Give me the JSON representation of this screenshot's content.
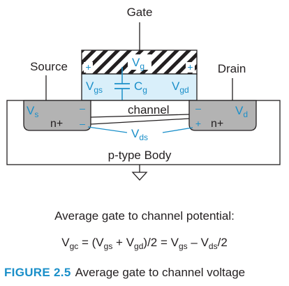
{
  "labels": {
    "gate": "Gate",
    "source": "Source",
    "drain": "Drain",
    "channel": "channel",
    "body": "p-type Body",
    "n_plus_left": "n+",
    "n_plus_right": "n+"
  },
  "voltages": {
    "vg": {
      "main": "V",
      "sub": "g"
    },
    "vgs": {
      "main": "V",
      "sub": "gs"
    },
    "cg": {
      "main": "C",
      "sub": "g"
    },
    "vgd": {
      "main": "V",
      "sub": "gd"
    },
    "vs": {
      "main": "V",
      "sub": "s"
    },
    "vd": {
      "main": "V",
      "sub": "d"
    },
    "vds": {
      "main": "V",
      "sub": "ds"
    }
  },
  "signs": {
    "plus": "+",
    "minus": "–"
  },
  "formula": {
    "heading": "Average gate to channel potential:",
    "text": "V_gc = (V_gs + V_gd)/2 = V_gs – V_ds/2"
  },
  "caption": {
    "label": "FIGURE 2.5",
    "text": "Average gate to channel voltage"
  },
  "colors": {
    "accent": "#1a8fc9",
    "oxide": "#d9effa",
    "diffusion": "#b3b3b3",
    "ink": "#231f20"
  }
}
